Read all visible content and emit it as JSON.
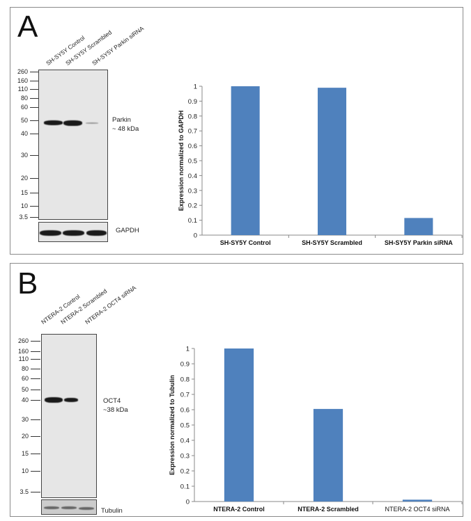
{
  "panels": [
    {
      "letter": "A",
      "blot": {
        "lanes": [
          "SH-SY5Y Control",
          "SH-SY5Y Scrambled",
          "SH-SY5Y Parkin siRNA"
        ],
        "markers": [
          "260",
          "160",
          "110",
          "80",
          "60",
          "50",
          "40",
          "30",
          "20",
          "15",
          "10",
          "3.5"
        ],
        "target_label": [
          "Parkin",
          "~ 48 kDa"
        ],
        "loading_control": "GAPDH"
      }
    },
    {
      "letter": "B",
      "blot": {
        "lanes": [
          "NTERA-2 Control",
          "NTERA-2 Scrambled",
          "NTERA-2 OCT4 siRNA"
        ],
        "markers": [
          "260",
          "160",
          "110",
          "80",
          "60",
          "50",
          "40",
          "30",
          "20",
          "15",
          "10",
          "3.5"
        ],
        "target_label": [
          "OCT4",
          "~38 kDa"
        ],
        "loading_control": "Tubulin"
      }
    }
  ],
  "colors": {
    "bar": "#4f81bd",
    "axis": "#888888"
  },
  "chart_data": [
    {
      "type": "bar",
      "categories": [
        "SH-SY5Y Control",
        "SH-SY5Y Scrambled",
        "SH-SY5Y Parkin siRNA"
      ],
      "values": [
        1.0,
        0.99,
        0.115
      ],
      "xlabel": "",
      "ylabel": "Expression  normalized to GAPDH",
      "ylim": [
        0,
        1
      ],
      "yticks": [
        "0",
        "0.1",
        "0.2",
        "0.3",
        "0.4",
        "0.5",
        "0.6",
        "0.7",
        "0.8",
        "0.9",
        "1"
      ],
      "grid": false
    },
    {
      "type": "bar",
      "categories": [
        "NTERA-2 Control",
        "NTERA-2 Scrambled",
        "NTERA-2  OCT4  siRNA"
      ],
      "values": [
        1.0,
        0.605,
        0.012
      ],
      "xlabel": "",
      "ylabel": "Expression  normalized to Tubulin",
      "ylim": [
        0,
        1
      ],
      "yticks": [
        "0",
        "0.1",
        "0.2",
        "0.3",
        "0.4",
        "0.5",
        "0.6",
        "0.7",
        "0.8",
        "0.9",
        "1"
      ],
      "grid": false
    }
  ]
}
